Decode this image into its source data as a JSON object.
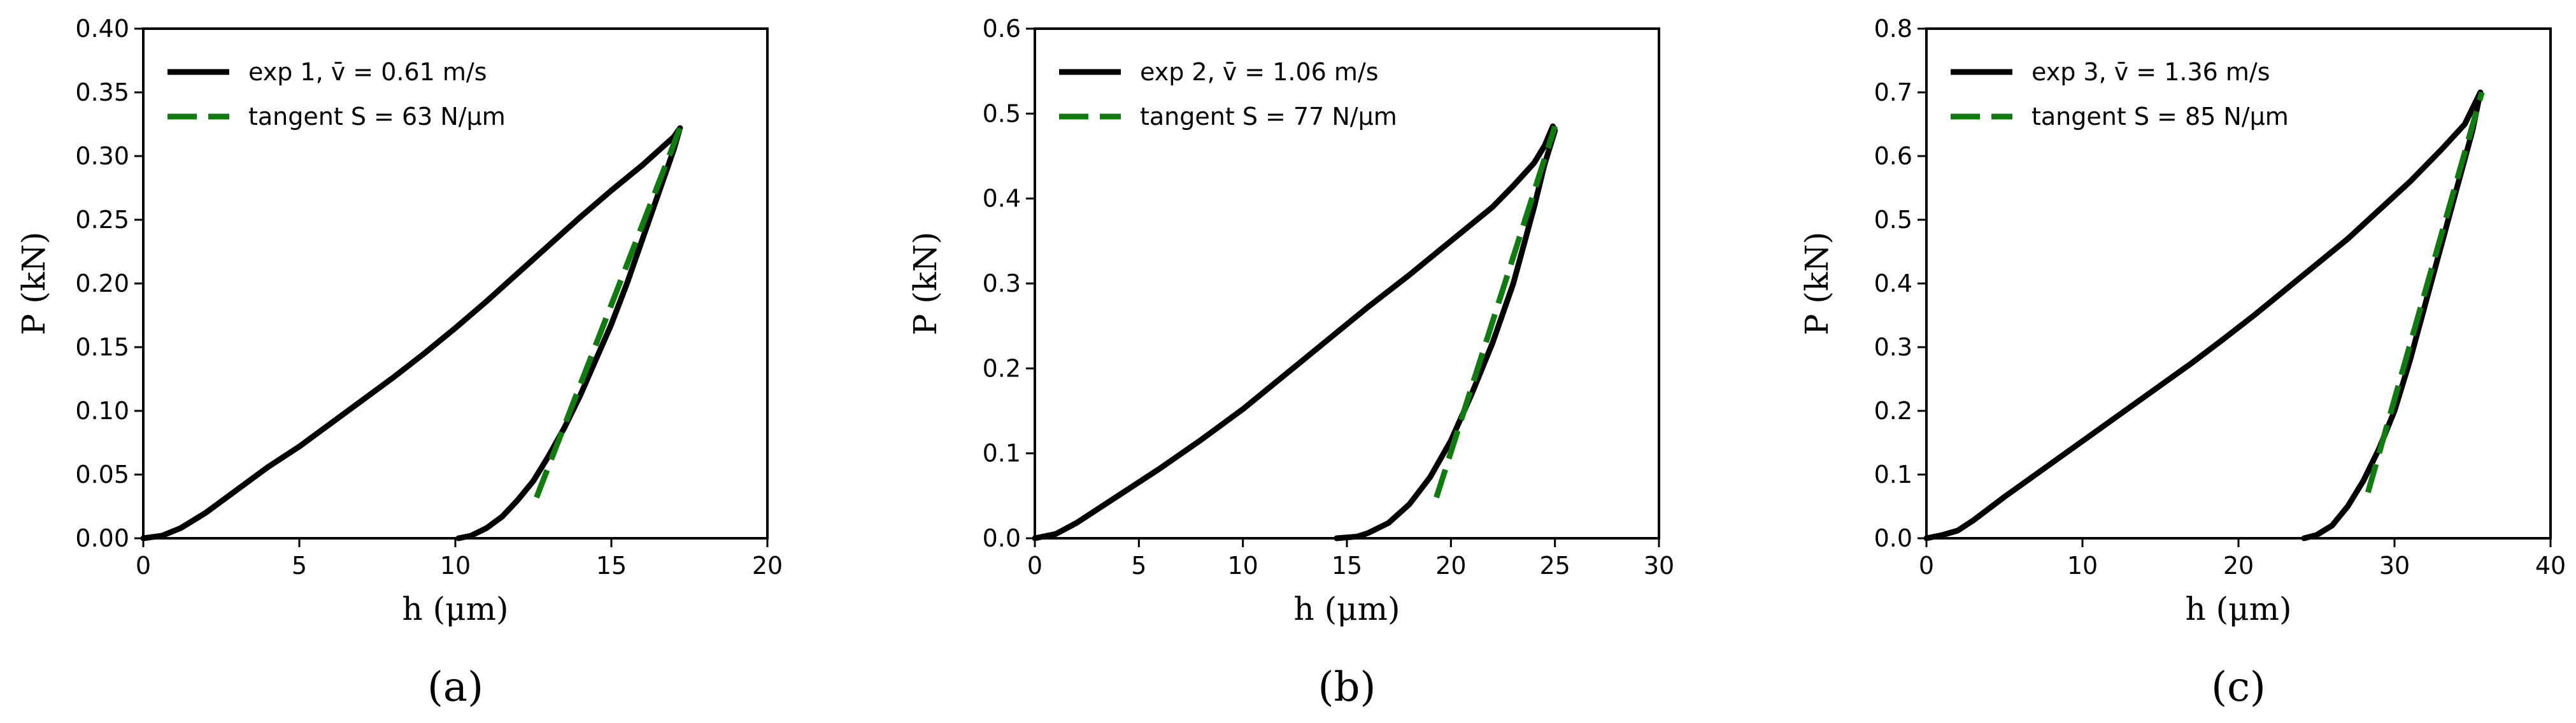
{
  "chart_data": [
    {
      "type": "line",
      "panel_label": "(a)",
      "xlabel": "h (μm)",
      "ylabel": "P (kN)",
      "xlim": [
        0,
        20
      ],
      "ylim": [
        0,
        0.4
      ],
      "xticks": [
        0,
        5,
        10,
        15,
        20
      ],
      "yticks": [
        0.0,
        0.05,
        0.1,
        0.15,
        0.2,
        0.25,
        0.3,
        0.35,
        0.4
      ],
      "x_tick_decimals": 0,
      "y_tick_decimals": 2,
      "legend_position": "upper-left",
      "series": [
        {
          "name": "exp 1, v̄ = 0.61 m/s",
          "style": "solid",
          "color": "#000000",
          "x": [
            0,
            0.6,
            1.2,
            2.0,
            3.0,
            4.0,
            5.0,
            6.0,
            7.0,
            8.0,
            9.0,
            10.0,
            11.0,
            12.0,
            13.0,
            14.0,
            15.0,
            16.0,
            17.0,
            17.2,
            17.0,
            16.5,
            16.0,
            15.5,
            15.0,
            14.5,
            14.0,
            13.5,
            13.0,
            12.5,
            12.0,
            11.5,
            11.0,
            10.5,
            10.1
          ],
          "y": [
            0.0,
            0.002,
            0.008,
            0.02,
            0.038,
            0.056,
            0.072,
            0.09,
            0.108,
            0.126,
            0.145,
            0.165,
            0.186,
            0.208,
            0.23,
            0.252,
            0.273,
            0.293,
            0.315,
            0.322,
            0.305,
            0.27,
            0.235,
            0.2,
            0.168,
            0.14,
            0.112,
            0.087,
            0.065,
            0.045,
            0.03,
            0.017,
            0.008,
            0.002,
            0.0
          ]
        },
        {
          "name": "tangent S = 63 N/μm",
          "style": "dashed",
          "color": "#107c10",
          "x": [
            12.6,
            17.2
          ],
          "y": [
            0.032,
            0.322
          ]
        }
      ]
    },
    {
      "type": "line",
      "panel_label": "(b)",
      "xlabel": "h (μm)",
      "ylabel": "P (kN)",
      "xlim": [
        0,
        30
      ],
      "ylim": [
        0,
        0.6
      ],
      "xticks": [
        0,
        5,
        10,
        15,
        20,
        25,
        30
      ],
      "yticks": [
        0.0,
        0.1,
        0.2,
        0.3,
        0.4,
        0.5,
        0.6
      ],
      "x_tick_decimals": 0,
      "y_tick_decimals": 1,
      "legend_position": "upper-left",
      "series": [
        {
          "name": "exp 2, v̄ = 1.06 m/s",
          "style": "solid",
          "color": "#000000",
          "x": [
            0,
            1.0,
            2.0,
            4.0,
            6.0,
            8.0,
            10.0,
            12.0,
            14.0,
            16.0,
            18.0,
            20.0,
            22.0,
            23.0,
            24.0,
            24.5,
            24.9,
            25.0,
            24.5,
            24.0,
            23.0,
            22.0,
            21.0,
            20.0,
            19.0,
            18.0,
            17.0,
            16.0,
            15.5,
            14.5
          ],
          "y": [
            0.0,
            0.005,
            0.018,
            0.05,
            0.082,
            0.116,
            0.152,
            0.192,
            0.232,
            0.272,
            0.31,
            0.35,
            0.39,
            0.415,
            0.442,
            0.462,
            0.485,
            0.48,
            0.44,
            0.39,
            0.3,
            0.23,
            0.17,
            0.115,
            0.072,
            0.04,
            0.018,
            0.006,
            0.002,
            0.0
          ]
        },
        {
          "name": "tangent S = 77 N/μm",
          "style": "dashed",
          "color": "#107c10",
          "x": [
            19.3,
            25.0
          ],
          "y": [
            0.048,
            0.485
          ]
        }
      ]
    },
    {
      "type": "line",
      "panel_label": "(c)",
      "xlabel": "h (μm)",
      "ylabel": "P (kN)",
      "xlim": [
        0,
        40
      ],
      "ylim": [
        0,
        0.8
      ],
      "xticks": [
        0,
        10,
        20,
        30,
        40
      ],
      "yticks": [
        0.0,
        0.1,
        0.2,
        0.3,
        0.4,
        0.5,
        0.6,
        0.7,
        0.8
      ],
      "x_tick_decimals": 0,
      "y_tick_decimals": 1,
      "legend_position": "upper-left",
      "series": [
        {
          "name": "exp 3, v̄ = 1.36 m/s",
          "style": "solid",
          "color": "#000000",
          "x": [
            0,
            1.0,
            2.0,
            3.0,
            5.0,
            7.0,
            9.0,
            11.0,
            13.0,
            15.0,
            17.0,
            19.0,
            21.0,
            23.0,
            25.0,
            27.0,
            29.0,
            31.0,
            33.0,
            34.5,
            35.5,
            35.0,
            34.0,
            33.0,
            32.0,
            31.0,
            30.0,
            29.0,
            28.0,
            27.0,
            26.0,
            25.0,
            24.2
          ],
          "y": [
            0.0,
            0.005,
            0.012,
            0.028,
            0.065,
            0.1,
            0.135,
            0.17,
            0.205,
            0.24,
            0.275,
            0.312,
            0.35,
            0.39,
            0.43,
            0.47,
            0.515,
            0.56,
            0.61,
            0.65,
            0.7,
            0.64,
            0.55,
            0.46,
            0.37,
            0.28,
            0.2,
            0.14,
            0.09,
            0.05,
            0.02,
            0.005,
            0.0
          ]
        },
        {
          "name": "tangent S = 85 N/μm",
          "style": "dashed",
          "color": "#107c10",
          "x": [
            28.3,
            35.6
          ],
          "y": [
            0.072,
            0.7
          ]
        }
      ]
    }
  ]
}
